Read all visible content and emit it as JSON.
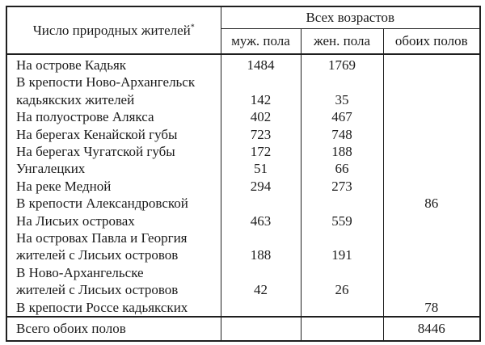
{
  "table": {
    "header": {
      "natives_label": "Число природных жителей",
      "footnote_marker": "*",
      "all_ages": "Всех возрастов",
      "male": "муж. пола",
      "female": "жен. пола",
      "both": "обоих полов"
    },
    "rows": [
      {
        "label": "На острове Кадьяк",
        "male": "1484",
        "female": "1769",
        "both": ""
      },
      {
        "label": "В крепости Ново-Архангельск",
        "male": "",
        "female": "",
        "both": ""
      },
      {
        "label": "кадьякских жителей",
        "male": "142",
        "female": "35",
        "both": ""
      },
      {
        "label": "На полуострове Алякса",
        "male": "402",
        "female": "467",
        "both": ""
      },
      {
        "label": "На берегах Кенайской губы",
        "male": "723",
        "female": "748",
        "both": ""
      },
      {
        "label": "На берегах Чугатской губы",
        "male": "172",
        "female": "188",
        "both": ""
      },
      {
        "label": "Унгалецких",
        "male": "51",
        "female": "66",
        "both": ""
      },
      {
        "label": "На реке Медной",
        "male": "294",
        "female": "273",
        "both": ""
      },
      {
        "label": "В крепости Александровской",
        "male": "",
        "female": "",
        "both": "86"
      },
      {
        "label": "На Лисьих островах",
        "male": "463",
        "female": "559",
        "both": ""
      },
      {
        "label": "На островах Павла и Георгия",
        "male": "",
        "female": "",
        "both": ""
      },
      {
        "label": "жителей с Лисьих островов",
        "male": "188",
        "female": "191",
        "both": ""
      },
      {
        "label": "В Ново-Архангельске",
        "male": "",
        "female": "",
        "both": ""
      },
      {
        "label": "жителей с Лисьих островов",
        "male": "42",
        "female": "26",
        "both": ""
      },
      {
        "label": "В крепости Россе кадьякских",
        "male": "",
        "female": "",
        "both": "78"
      }
    ],
    "total": {
      "label": "Всего обоих полов",
      "male": "",
      "female": "",
      "both": "8446"
    }
  },
  "colors": {
    "border": "#1f1f1f",
    "text": "#1b1b1b",
    "background": "#ffffff"
  }
}
